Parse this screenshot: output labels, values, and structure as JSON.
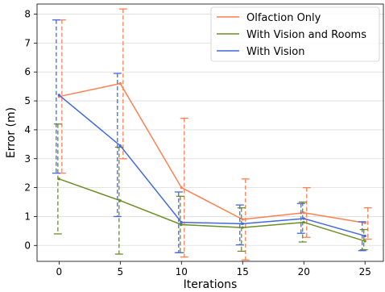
{
  "chart_data": {
    "type": "line",
    "xlabel": "Iterations",
    "ylabel": "Error (m)",
    "xlim": [
      -1.8,
      26.5
    ],
    "ylim": [
      -0.55,
      8.35
    ],
    "x_ticks": [
      0,
      5,
      10,
      15,
      20,
      25
    ],
    "y_ticks": [
      0,
      1,
      2,
      3,
      4,
      5,
      6,
      7,
      8
    ],
    "grid": "horizontal",
    "legend_position": "top-right",
    "series": [
      {
        "name": "Olfaction Only",
        "color": "#ff7f50",
        "x": [
          0,
          5,
          10,
          15,
          20,
          25
        ],
        "values": [
          5.15,
          5.6,
          2.0,
          0.9,
          1.13,
          0.78
        ],
        "error_low": [
          2.5,
          3.0,
          -0.4,
          -0.5,
          0.28,
          0.22
        ],
        "error_high": [
          7.8,
          8.18,
          4.4,
          2.3,
          2.0,
          1.3
        ]
      },
      {
        "name": "With Vision and Rooms",
        "color": "#6b8e23",
        "x": [
          0,
          5,
          10,
          15,
          20,
          25
        ],
        "values": [
          2.3,
          1.55,
          0.72,
          0.62,
          0.8,
          0.15
        ],
        "error_low": [
          0.4,
          -0.3,
          -0.25,
          -0.2,
          0.12,
          -0.15
        ],
        "error_high": [
          4.2,
          3.4,
          1.7,
          1.3,
          1.5,
          0.55
        ]
      },
      {
        "name": "With Vision",
        "color": "#4169e1",
        "x": [
          0,
          5,
          10,
          15,
          20,
          25
        ],
        "values": [
          5.2,
          3.45,
          0.8,
          0.75,
          0.93,
          0.33
        ],
        "error_low": [
          2.5,
          1.0,
          -0.25,
          0.02,
          0.42,
          -0.18
        ],
        "error_high": [
          7.8,
          5.95,
          1.85,
          1.4,
          1.45,
          0.82
        ]
      }
    ]
  }
}
